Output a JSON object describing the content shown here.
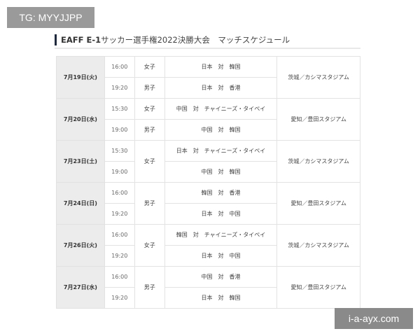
{
  "watermarks": {
    "top_left": "TG: MYYJJPP",
    "bottom_right": "i-a-ayx.com"
  },
  "title": {
    "bold": "EAFF E-1",
    "rest": "サッカー選手権2022決勝大会　マッチスケジュール"
  },
  "days": [
    {
      "date": "7月19日(火)",
      "venue": "茨城／カシマスタジアム",
      "genders": [
        {
          "label": "女子",
          "rows": 1
        },
        {
          "label": "男子",
          "rows": 1
        }
      ],
      "matches": [
        {
          "time": "16:00",
          "match": "日本　対　韓国"
        },
        {
          "time": "19:20",
          "match": "日本　対　香港"
        }
      ]
    },
    {
      "date": "7月20日(水)",
      "venue": "愛知／豊田スタジアム",
      "genders": [
        {
          "label": "女子",
          "rows": 1
        },
        {
          "label": "男子",
          "rows": 1
        }
      ],
      "matches": [
        {
          "time": "15:30",
          "match": "中国　対　チャイニーズ・タイペイ"
        },
        {
          "time": "19:00",
          "match": "中国　対　韓国"
        }
      ]
    },
    {
      "date": "7月23日(土)",
      "venue": "茨城／カシマスタジアム",
      "genders": [
        {
          "label": "女子",
          "rows": 2
        }
      ],
      "matches": [
        {
          "time": "15:30",
          "match": "日本　対　チャイニーズ・タイペイ"
        },
        {
          "time": "19:00",
          "match": "中国　対　韓国"
        }
      ]
    },
    {
      "date": "7月24日(日)",
      "venue": "愛知／豊田スタジアム",
      "genders": [
        {
          "label": "男子",
          "rows": 2
        }
      ],
      "matches": [
        {
          "time": "16:00",
          "match": "韓国　対　香港"
        },
        {
          "time": "19:20",
          "match": "日本　対　中国"
        }
      ]
    },
    {
      "date": "7月26日(火)",
      "venue": "茨城／カシマスタジアム",
      "genders": [
        {
          "label": "女子",
          "rows": 2
        }
      ],
      "matches": [
        {
          "time": "16:00",
          "match": "韓国　対　チャイニーズ・タイペイ"
        },
        {
          "time": "19:20",
          "match": "日本　対　中国"
        }
      ]
    },
    {
      "date": "7月27日(水)",
      "venue": "愛知／豊田スタジアム",
      "genders": [
        {
          "label": "男子",
          "rows": 2
        }
      ],
      "matches": [
        {
          "time": "16:00",
          "match": "中国　対　香港"
        },
        {
          "time": "19:20",
          "match": "日本　対　韓国"
        }
      ]
    }
  ]
}
